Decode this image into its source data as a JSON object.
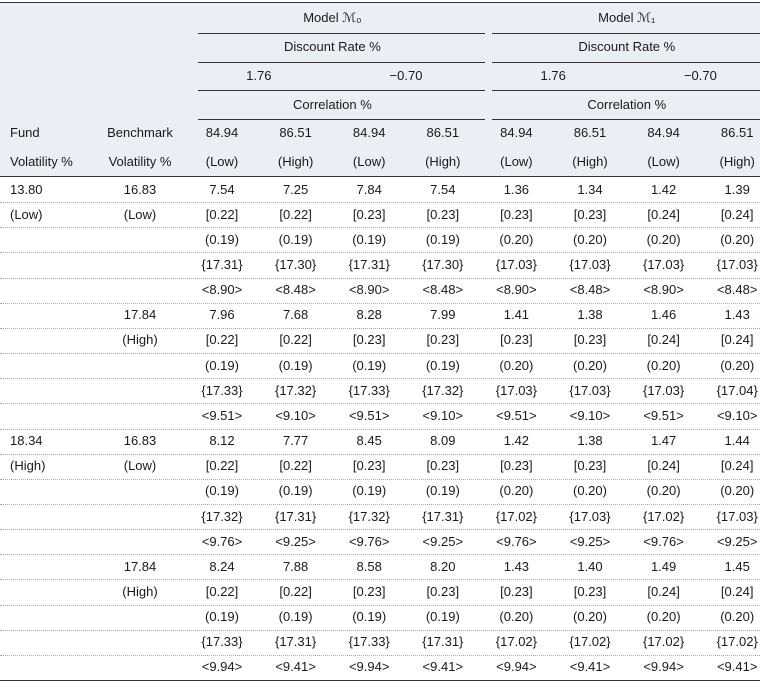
{
  "header": {
    "models": [
      {
        "title": "Model ℳ₀",
        "discount_label": "Discount Rate %",
        "discount_rates": [
          "1.76",
          "−0.70"
        ],
        "correlation_label": "Correlation %"
      },
      {
        "title": "Model ℳ₁",
        "discount_label": "Discount Rate %",
        "discount_rates": [
          "1.76",
          "−0.70"
        ],
        "correlation_label": "Correlation %"
      }
    ],
    "fund_label": [
      "Fund",
      "Volatility %"
    ],
    "benchmark_label": [
      "Benchmark",
      "Volatility %"
    ],
    "correlations": [
      "84.94",
      "86.51",
      "84.94",
      "86.51",
      "84.94",
      "86.51",
      "84.94",
      "86.51"
    ],
    "correlation_levels": [
      "(Low)",
      "(High)",
      "(Low)",
      "(High)",
      "(Low)",
      "(High)",
      "(Low)",
      "(High)"
    ]
  },
  "blocks": [
    {
      "fund": "13.80",
      "fund_level": "(Low)",
      "benchmark": "16.83",
      "benchmark_level": "(Low)",
      "lines": [
        [
          "7.54",
          "7.25",
          "7.84",
          "7.54",
          "1.36",
          "1.34",
          "1.42",
          "1.39"
        ],
        [
          "[0.22]",
          "[0.22]",
          "[0.23]",
          "[0.23]",
          "[0.23]",
          "[0.23]",
          "[0.24]",
          "[0.24]"
        ],
        [
          "(0.19)",
          "(0.19)",
          "(0.19)",
          "(0.19)",
          "(0.20)",
          "(0.20)",
          "(0.20)",
          "(0.20)"
        ],
        [
          "{17.31}",
          "{17.30}",
          "{17.31}",
          "{17.30}",
          "{17.03}",
          "{17.03}",
          "{17.03}",
          "{17.03}"
        ],
        [
          "<8.90>",
          "<8.48>",
          "<8.90>",
          "<8.48>",
          "<8.90>",
          "<8.48>",
          "<8.90>",
          "<8.48>"
        ]
      ]
    },
    {
      "benchmark": "17.84",
      "benchmark_level": "(High)",
      "lines": [
        [
          "7.96",
          "7.68",
          "8.28",
          "7.99",
          "1.41",
          "1.38",
          "1.46",
          "1.43"
        ],
        [
          "[0.22]",
          "[0.22]",
          "[0.23]",
          "[0.23]",
          "[0.23]",
          "[0.23]",
          "[0.24]",
          "[0.24]"
        ],
        [
          "(0.19)",
          "(0.19)",
          "(0.19)",
          "(0.19)",
          "(0.20)",
          "(0.20)",
          "(0.20)",
          "(0.20)"
        ],
        [
          "{17.33}",
          "{17.32}",
          "{17.33}",
          "{17.32}",
          "{17.03}",
          "{17.03}",
          "{17.03}",
          "{17.04}"
        ],
        [
          "<9.51>",
          "<9.10>",
          "<9.51>",
          "<9.10>",
          "<9.51>",
          "<9.10>",
          "<9.51>",
          "<9.10>"
        ]
      ]
    },
    {
      "fund": "18.34",
      "fund_level": "(High)",
      "benchmark": "16.83",
      "benchmark_level": "(Low)",
      "lines": [
        [
          "8.12",
          "7.77",
          "8.45",
          "8.09",
          "1.42",
          "1.38",
          "1.47",
          "1.44"
        ],
        [
          "[0.22]",
          "[0.22]",
          "[0.23]",
          "[0.23]",
          "[0.23]",
          "[0.23]",
          "[0.24]",
          "[0.24]"
        ],
        [
          "(0.19)",
          "(0.19)",
          "(0.19)",
          "(0.19)",
          "(0.20)",
          "(0.20)",
          "(0.20)",
          "(0.20)"
        ],
        [
          "{17.32}",
          "{17.31}",
          "{17.32}",
          "{17.31}",
          "{17.02}",
          "{17.03}",
          "{17.02}",
          "{17.03}"
        ],
        [
          "<9.76>",
          "<9.25>",
          "<9.76>",
          "<9.25>",
          "<9.76>",
          "<9.25>",
          "<9.76>",
          "<9.25>"
        ]
      ]
    },
    {
      "benchmark": "17.84",
      "benchmark_level": "(High)",
      "lines": [
        [
          "8.24",
          "7.88",
          "8.58",
          "8.20",
          "1.43",
          "1.40",
          "1.49",
          "1.45"
        ],
        [
          "[0.22]",
          "[0.22]",
          "[0.23]",
          "[0.23]",
          "[0.23]",
          "[0.23]",
          "[0.24]",
          "[0.24]"
        ],
        [
          "(0.19)",
          "(0.19)",
          "(0.19)",
          "(0.19)",
          "(0.20)",
          "(0.20)",
          "(0.20)",
          "(0.20)"
        ],
        [
          "{17.33}",
          "{17.31}",
          "{17.33}",
          "{17.31}",
          "{17.02}",
          "{17.02}",
          "{17.02}",
          "{17.02}"
        ],
        [
          "<9.94>",
          "<9.41>",
          "<9.94>",
          "<9.41>",
          "<9.94>",
          "<9.41>",
          "<9.94>",
          "<9.41>"
        ]
      ]
    }
  ]
}
